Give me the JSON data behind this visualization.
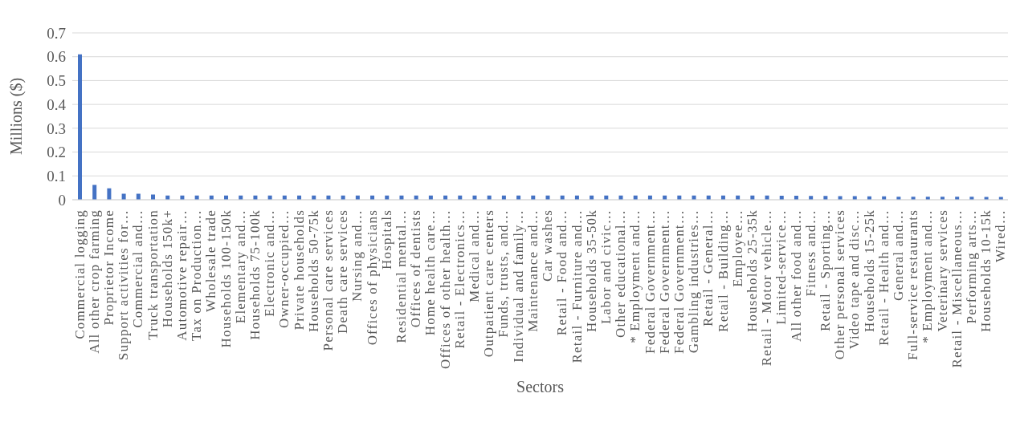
{
  "chart_data": {
    "type": "bar",
    "xlabel": "Sectors",
    "ylabel": "Millions ($)",
    "categories": [
      "Commercial logging",
      "All other crop farming",
      "Proprietor Income",
      "Support activities for…",
      "Commercial and…",
      "Truck transportation",
      "Households 150k+",
      "Automotive repair…",
      "Tax on Production…",
      "Wholesale trade",
      "Households 100-150k",
      "Elementary and…",
      "Households 75-100k",
      "Electronic and…",
      "Owner-occupied…",
      "Private households",
      "Households 50-75k",
      "Personal care services",
      "Death care services",
      "Nursing and…",
      "Offices of physicians",
      "Hospitals",
      "Residential mental…",
      "Offices of dentists",
      "Home health care…",
      "Offices of other health…",
      "Retail - Electronics…",
      "Medical and…",
      "Outpatient care centers",
      "Funds, trusts, and…",
      "Individual and family…",
      "Maintenance and…",
      "Car washes",
      "Retail - Food and…",
      "Retail - Furniture and…",
      "Households 35-50k",
      "Labor and civic…",
      "Other educational…",
      "* Employment and…",
      "Federal Government…",
      "Federal Government…",
      "Federal Government…",
      "Gambling industries…",
      "Retail - General…",
      "Retail - Building…",
      "Employee…",
      "Households 25-35k",
      "Retail - Motor vehicle…",
      "Limited-service…",
      "All other food and…",
      "Fitness and…",
      "Retail - Sporting…",
      "Other personal services",
      "Video tape and disc…",
      "Households 15-25k",
      "Retail - Health and…",
      "General and…",
      "Full-service restaurants",
      "* Employment and…",
      "Veterinary services",
      "Retail - Miscellaneous…",
      "Performing arts…",
      "Households 10-15k",
      "Wired…"
    ],
    "values": [
      0.61,
      0.062,
      0.048,
      0.025,
      0.025,
      0.022,
      0.018,
      0.018,
      0.018,
      0.018,
      0.018,
      0.018,
      0.018,
      0.018,
      0.018,
      0.018,
      0.018,
      0.018,
      0.018,
      0.018,
      0.018,
      0.018,
      0.018,
      0.018,
      0.018,
      0.018,
      0.018,
      0.018,
      0.018,
      0.018,
      0.018,
      0.018,
      0.018,
      0.018,
      0.018,
      0.018,
      0.018,
      0.018,
      0.018,
      0.018,
      0.018,
      0.018,
      0.018,
      0.018,
      0.018,
      0.018,
      0.018,
      0.018,
      0.017,
      0.017,
      0.016,
      0.016,
      0.015,
      0.015,
      0.014,
      0.014,
      0.013,
      0.013,
      0.013,
      0.013,
      0.013,
      0.013,
      0.012,
      0.012
    ],
    "color": "#4472c4",
    "ylim": [
      0,
      0.7
    ],
    "yticks": [
      0,
      0.1,
      0.2,
      0.3,
      0.4,
      0.5,
      0.6,
      0.7
    ],
    "grid": "y"
  }
}
